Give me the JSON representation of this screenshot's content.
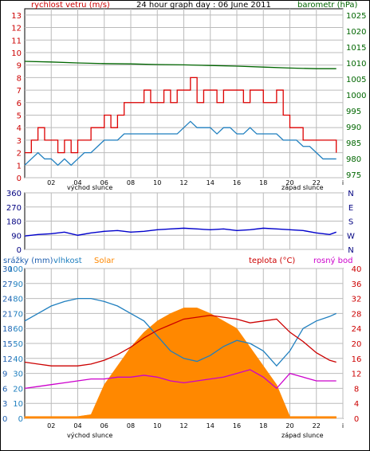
{
  "chart_data": [
    {
      "type": "line",
      "title": "24 hour graph day : 06 June 2011",
      "left_axis_label": "rychlost vetru (m/s)",
      "right_axis_label": "barometr (hPa)",
      "x_ticks": [
        "02",
        "04",
        "06",
        "08",
        "10",
        "12",
        "14",
        "16",
        "18",
        "20",
        "22",
        "i"
      ],
      "sunrise_label": "východ slunce",
      "sunset_label": "západ slunce",
      "left_ticks": [
        "0",
        "1",
        "2",
        "3",
        "4",
        "5",
        "6",
        "7",
        "8",
        "9",
        "10",
        "11",
        "12",
        "13"
      ],
      "right_ticks": [
        "975",
        "980",
        "985",
        "990",
        "995",
        "1000",
        "1005",
        "1010",
        "1015",
        "1020",
        "1025"
      ],
      "ylim_left": [
        0,
        13.5
      ],
      "ylim_right": [
        974,
        1027
      ],
      "series": [
        {
          "name": "rychlost vetru",
          "color": "#dd0000",
          "x": [
            0,
            0.5,
            1,
            1.5,
            2,
            2.5,
            3,
            3.5,
            4,
            4.5,
            5,
            5.5,
            6,
            6.5,
            7,
            7.5,
            8,
            8.5,
            9,
            9.5,
            10,
            10.5,
            11,
            11.5,
            12,
            12.5,
            13,
            13.5,
            14,
            14.5,
            15,
            15.5,
            16,
            16.5,
            17,
            17.5,
            18,
            18.5,
            19,
            19.5,
            20,
            20.5,
            21,
            21.5,
            22,
            22.5,
            23,
            23.5
          ],
          "y": [
            2,
            3,
            4,
            3,
            3,
            2,
            3,
            2,
            3,
            3,
            4,
            4,
            5,
            4,
            5,
            6,
            6,
            6,
            7,
            6,
            6,
            7,
            6,
            7,
            7,
            8,
            6,
            7,
            7,
            6,
            7,
            7,
            7,
            6,
            7,
            7,
            6,
            6,
            7,
            5,
            4,
            4,
            3,
            3,
            3,
            3,
            3,
            2
          ]
        },
        {
          "name": "",
          "color": "#1f7fbf",
          "x": [
            0,
            0.5,
            1,
            1.5,
            2,
            2.5,
            3,
            3.5,
            4,
            4.5,
            5,
            5.5,
            6,
            6.5,
            7,
            7.5,
            8,
            8.5,
            9,
            9.5,
            10,
            10.5,
            11,
            11.5,
            12,
            12.5,
            13,
            13.5,
            14,
            14.5,
            15,
            15.5,
            16,
            16.5,
            17,
            17.5,
            18,
            18.5,
            19,
            19.5,
            20,
            20.5,
            21,
            21.5,
            22,
            22.5,
            23,
            23.5
          ],
          "y": [
            1,
            1.5,
            2,
            1.5,
            1.5,
            1,
            1.5,
            1,
            1.5,
            2,
            2,
            2.5,
            3,
            3,
            3,
            3.5,
            3.5,
            3.5,
            3.5,
            3.5,
            3.5,
            3.5,
            3.5,
            3.5,
            4,
            4.5,
            4,
            4,
            4,
            3.5,
            4,
            4,
            3.5,
            3.5,
            4,
            3.5,
            3.5,
            3.5,
            3.5,
            3,
            3,
            3,
            2.5,
            2.5,
            2,
            1.5,
            1.5,
            1.5
          ]
        },
        {
          "name": "barometr",
          "color": "#006600",
          "x": [
            0,
            2,
            4,
            6,
            8,
            10,
            12,
            14,
            16,
            18,
            20,
            22,
            23.5
          ],
          "y": [
            1010.5,
            1010.3,
            1010,
            1009.8,
            1009.7,
            1009.5,
            1009.4,
            1009.2,
            1009,
            1008.7,
            1008.4,
            1008.2,
            1008.2
          ]
        }
      ]
    },
    {
      "type": "scatter",
      "x_ticks": [
        "02",
        "04",
        "06",
        "08",
        "10",
        "12",
        "14",
        "16",
        "18",
        "20",
        "22",
        "i"
      ],
      "left_ticks": [
        "0",
        "90",
        "180",
        "270",
        "360"
      ],
      "right_ticks": [
        "N",
        "W",
        "S",
        "E",
        "N"
      ],
      "ylim": [
        0,
        360
      ],
      "series": [
        {
          "name": "",
          "color": "#0000cc",
          "x": [
            0,
            1,
            2,
            3,
            4,
            5,
            6,
            7,
            8,
            9,
            10,
            11,
            12,
            13,
            14,
            15,
            16,
            17,
            18,
            19,
            20,
            21,
            22,
            23,
            23.5
          ],
          "y": [
            85,
            95,
            100,
            110,
            90,
            105,
            115,
            120,
            110,
            115,
            125,
            130,
            135,
            130,
            125,
            130,
            120,
            125,
            135,
            130,
            125,
            120,
            105,
            95,
            110
          ]
        }
      ]
    },
    {
      "type": "area",
      "top_labels": {
        "srazky": "srážky (mm)",
        "vlhkost": "vlhkost",
        "solar": "Solar",
        "teplota": "teplota (°C)",
        "rosny_bod": "rosný bod"
      },
      "x_ticks": [
        "02",
        "04",
        "06",
        "08",
        "10",
        "12",
        "14",
        "16",
        "18",
        "20",
        "22",
        "i"
      ],
      "sunrise_label": "východ slunce",
      "sunset_label": "západ slunce",
      "rain_ticks": [
        "0",
        "3",
        "6",
        "9",
        "12",
        "15",
        "18",
        "21",
        "24",
        "27",
        "30"
      ],
      "humidity_ticks": [
        "0",
        "10",
        "20",
        "30",
        "40",
        "50",
        "60",
        "70",
        "80",
        "90",
        "100"
      ],
      "right_ticks": [
        "0",
        "4",
        "8",
        "12",
        "16",
        "20",
        "24",
        "28",
        "32",
        "36",
        "40"
      ],
      "ylim_right": [
        0,
        40
      ],
      "series": [
        {
          "name": "vlhkost",
          "color": "#1f7fbf",
          "x": [
            0,
            1,
            2,
            3,
            4,
            5,
            6,
            7,
            8,
            9,
            10,
            11,
            12,
            13,
            14,
            15,
            16,
            17,
            18,
            19,
            20,
            21,
            22,
            23,
            23.5
          ],
          "y": [
            65,
            70,
            75,
            78,
            80,
            80,
            78,
            75,
            70,
            65,
            55,
            45,
            40,
            38,
            42,
            48,
            52,
            50,
            45,
            35,
            45,
            60,
            65,
            68,
            70
          ]
        },
        {
          "name": "teplota",
          "color": "#cc0000",
          "x": [
            0,
            1,
            2,
            3,
            4,
            5,
            6,
            7,
            8,
            9,
            10,
            11,
            12,
            13,
            14,
            15,
            16,
            17,
            18,
            19,
            20,
            21,
            22,
            23,
            23.5
          ],
          "y": [
            15,
            14.5,
            14,
            14,
            14,
            14.5,
            15.5,
            17,
            19,
            21.5,
            23.5,
            25,
            26.5,
            27,
            27.5,
            27,
            26.5,
            25.5,
            26,
            26.5,
            23,
            20.5,
            17.5,
            15.5,
            15
          ]
        },
        {
          "name": "rosný bod",
          "color": "#cc00cc",
          "x": [
            0,
            1,
            2,
            3,
            4,
            5,
            6,
            7,
            8,
            9,
            10,
            11,
            12,
            13,
            14,
            15,
            16,
            17,
            18,
            19,
            20,
            21,
            22,
            23,
            23.5
          ],
          "y": [
            8,
            8.5,
            9,
            9.5,
            10,
            10.5,
            10.5,
            11,
            11,
            11.5,
            11,
            10,
            9.5,
            10,
            10.5,
            11,
            12,
            13,
            11,
            8,
            12,
            11,
            10,
            10,
            10
          ]
        },
        {
          "name": "Solar",
          "color": "#ff8800",
          "x": [
            0,
            4,
            5,
            6,
            7,
            8,
            9,
            10,
            11,
            12,
            13,
            14,
            15,
            16,
            17,
            18,
            19,
            20,
            21,
            22,
            23,
            23.5
          ],
          "y": [
            0.5,
            0.5,
            1,
            9,
            14,
            19,
            23,
            26,
            28,
            29.5,
            29.5,
            28,
            26,
            24,
            19,
            14,
            9,
            0.5,
            0.5,
            0.5,
            0.5,
            0.5
          ]
        }
      ]
    }
  ]
}
